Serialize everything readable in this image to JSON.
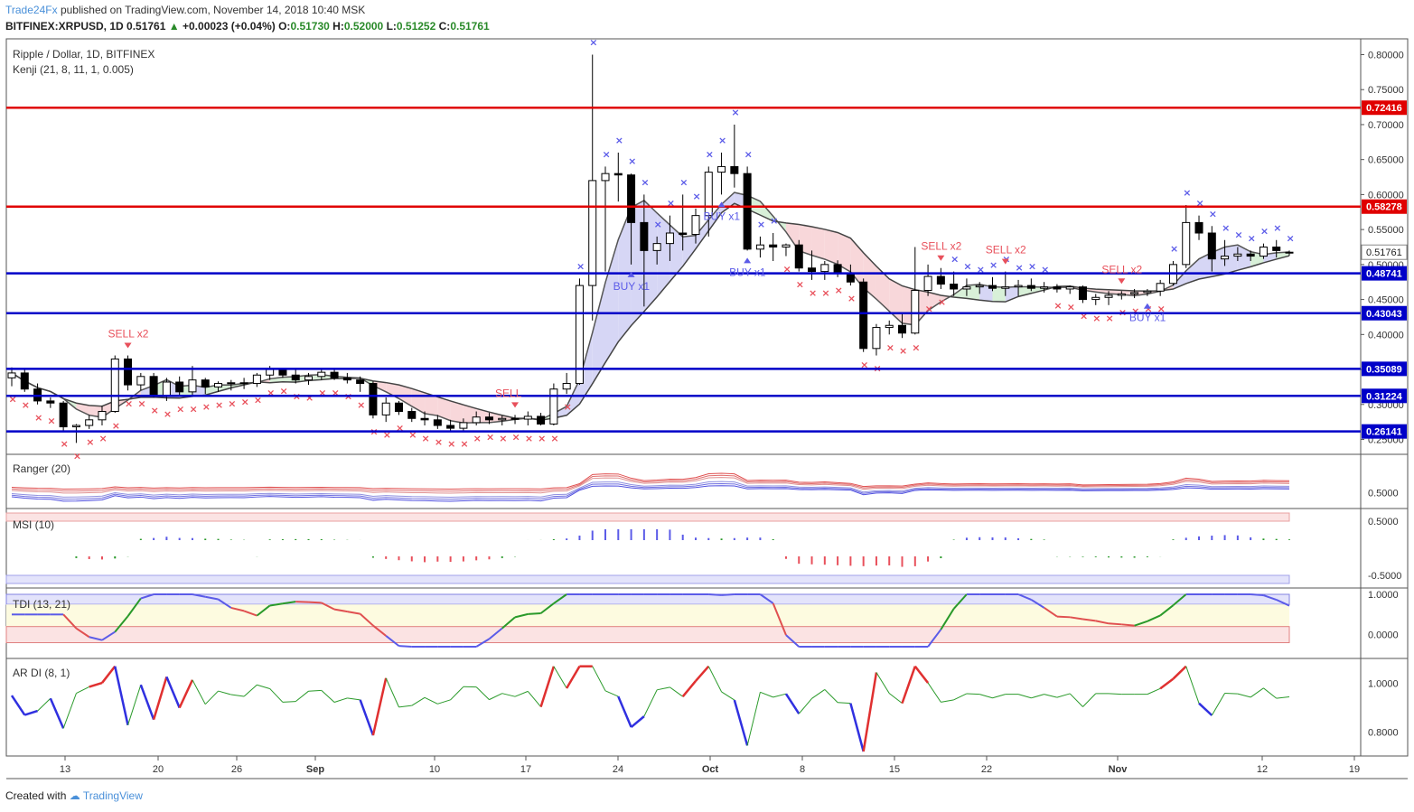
{
  "header": {
    "brand": "Trade24Fx",
    "published": "published on TradingView.com, November 14, 2018 10:40 MSK",
    "symbol": "BITFINEX:XRPUSD, 1D",
    "last": "0.51761",
    "change": "+0.00023 (+0.04%)",
    "o_label": "O:",
    "o": "0.51730",
    "h_label": "H:",
    "h": "0.52000",
    "l_label": "L:",
    "l": "0.51252",
    "c_label": "C:",
    "c": "0.51761"
  },
  "footer": {
    "created": "Created with",
    "tv": "TradingView"
  },
  "colors": {
    "bull": "#ffffff",
    "bear": "#000000",
    "red_line": "#e00000",
    "blue_line": "#0000c8",
    "sell": "#e8505b",
    "buy": "#5b5be8",
    "cloud_pink": "#f8d7da",
    "cloud_blue": "#d6d6f5",
    "cloud_green": "#d8f0d8"
  },
  "chart_data": [
    {
      "type": "candlestick",
      "title": "Ripple / Dollar, 1D, BITFINEX",
      "subtitle": "Kenji (21, 8, 11, 1, 0.005)",
      "ylim": [
        0.23,
        0.82
      ],
      "y_ticks": [
        0.8,
        0.75,
        0.7,
        0.65,
        0.6,
        0.55,
        0.5,
        0.45,
        0.4,
        0.35,
        0.3,
        0.25
      ],
      "y_tick_labels": [
        "0.80000",
        "0.75000",
        "0.70000",
        "0.65000",
        "0.60000",
        "0.55000",
        "0.50000",
        "0.45000",
        "0.40000",
        "0.35000",
        "0.30000",
        "0.25000"
      ],
      "last_price_label": "0.51761",
      "x_tick_labels": [
        "13",
        "20",
        "26",
        "Sep",
        "10",
        "17",
        "24",
        "Oct",
        "8",
        "15",
        "22",
        "Nov",
        "12",
        "19"
      ],
      "levels": [
        {
          "value": 0.72416,
          "label": "0.72416",
          "color": "red"
        },
        {
          "value": 0.58278,
          "label": "0.58278",
          "color": "red"
        },
        {
          "value": 0.48741,
          "label": "0.48741",
          "color": "blue"
        },
        {
          "value": 0.43043,
          "label": "0.43043",
          "color": "blue"
        },
        {
          "value": 0.35089,
          "label": "0.35089",
          "color": "blue"
        },
        {
          "value": 0.31224,
          "label": "0.31224",
          "color": "blue"
        },
        {
          "value": 0.26141,
          "label": "0.26141",
          "color": "blue"
        }
      ],
      "candles": [
        [
          0.338,
          0.353,
          0.326,
          0.345
        ],
        [
          0.345,
          0.35,
          0.318,
          0.322
        ],
        [
          0.322,
          0.33,
          0.3,
          0.305
        ],
        [
          0.305,
          0.31,
          0.295,
          0.302
        ],
        [
          0.302,
          0.305,
          0.262,
          0.268
        ],
        [
          0.268,
          0.272,
          0.245,
          0.27
        ],
        [
          0.27,
          0.285,
          0.265,
          0.278
        ],
        [
          0.278,
          0.298,
          0.27,
          0.29
        ],
        [
          0.29,
          0.37,
          0.288,
          0.365
        ],
        [
          0.365,
          0.37,
          0.32,
          0.328
        ],
        [
          0.328,
          0.345,
          0.32,
          0.34
        ],
        [
          0.34,
          0.345,
          0.31,
          0.312
        ],
        [
          0.312,
          0.338,
          0.305,
          0.332
        ],
        [
          0.332,
          0.34,
          0.312,
          0.318
        ],
        [
          0.318,
          0.355,
          0.312,
          0.335
        ],
        [
          0.335,
          0.338,
          0.315,
          0.325
        ],
        [
          0.325,
          0.333,
          0.318,
          0.33
        ],
        [
          0.33,
          0.335,
          0.32,
          0.331
        ],
        [
          0.331,
          0.338,
          0.322,
          0.33
        ],
        [
          0.33,
          0.345,
          0.325,
          0.342
        ],
        [
          0.342,
          0.355,
          0.335,
          0.35
        ],
        [
          0.35,
          0.352,
          0.338,
          0.342
        ],
        [
          0.342,
          0.35,
          0.33,
          0.335
        ],
        [
          0.335,
          0.345,
          0.328,
          0.34
        ],
        [
          0.34,
          0.35,
          0.335,
          0.346
        ],
        [
          0.346,
          0.35,
          0.335,
          0.338
        ],
        [
          0.338,
          0.345,
          0.33,
          0.335
        ],
        [
          0.335,
          0.34,
          0.318,
          0.33
        ],
        [
          0.33,
          0.333,
          0.28,
          0.285
        ],
        [
          0.285,
          0.31,
          0.275,
          0.302
        ],
        [
          0.302,
          0.305,
          0.285,
          0.29
        ],
        [
          0.29,
          0.295,
          0.275,
          0.28
        ],
        [
          0.28,
          0.29,
          0.27,
          0.278
        ],
        [
          0.278,
          0.285,
          0.265,
          0.27
        ],
        [
          0.27,
          0.278,
          0.262,
          0.266
        ],
        [
          0.266,
          0.28,
          0.262,
          0.274
        ],
        [
          0.274,
          0.29,
          0.27,
          0.282
        ],
        [
          0.282,
          0.288,
          0.272,
          0.278
        ],
        [
          0.278,
          0.284,
          0.27,
          0.28
        ],
        [
          0.28,
          0.285,
          0.272,
          0.279
        ],
        [
          0.279,
          0.29,
          0.27,
          0.283
        ],
        [
          0.283,
          0.288,
          0.27,
          0.272
        ],
        [
          0.272,
          0.33,
          0.27,
          0.322
        ],
        [
          0.322,
          0.345,
          0.315,
          0.33
        ],
        [
          0.33,
          0.48,
          0.328,
          0.47
        ],
        [
          0.47,
          0.8,
          0.42,
          0.62
        ],
        [
          0.62,
          0.64,
          0.49,
          0.63
        ],
        [
          0.63,
          0.66,
          0.59,
          0.628
        ],
        [
          0.628,
          0.63,
          0.5,
          0.56
        ],
        [
          0.56,
          0.6,
          0.44,
          0.52
        ],
        [
          0.52,
          0.54,
          0.5,
          0.53
        ],
        [
          0.53,
          0.57,
          0.505,
          0.545
        ],
        [
          0.545,
          0.6,
          0.52,
          0.543
        ],
        [
          0.543,
          0.58,
          0.53,
          0.57
        ],
        [
          0.57,
          0.64,
          0.54,
          0.632
        ],
        [
          0.632,
          0.66,
          0.6,
          0.64
        ],
        [
          0.64,
          0.7,
          0.61,
          0.63
        ],
        [
          0.63,
          0.64,
          0.52,
          0.522
        ],
        [
          0.522,
          0.54,
          0.51,
          0.528
        ],
        [
          0.528,
          0.545,
          0.505,
          0.525
        ],
        [
          0.525,
          0.53,
          0.512,
          0.528
        ],
        [
          0.528,
          0.535,
          0.49,
          0.495
        ],
        [
          0.495,
          0.52,
          0.478,
          0.49
        ],
        [
          0.49,
          0.505,
          0.478,
          0.5
        ],
        [
          0.5,
          0.506,
          0.482,
          0.488
        ],
        [
          0.488,
          0.5,
          0.47,
          0.475
        ],
        [
          0.475,
          0.48,
          0.375,
          0.38
        ],
        [
          0.38,
          0.415,
          0.37,
          0.41
        ],
        [
          0.41,
          0.42,
          0.4,
          0.413
        ],
        [
          0.413,
          0.43,
          0.395,
          0.402
        ],
        [
          0.402,
          0.525,
          0.4,
          0.463
        ],
        [
          0.463,
          0.5,
          0.455,
          0.483
        ],
        [
          0.483,
          0.495,
          0.465,
          0.472
        ],
        [
          0.472,
          0.49,
          0.455,
          0.465
        ],
        [
          0.465,
          0.48,
          0.455,
          0.468
        ],
        [
          0.468,
          0.475,
          0.458,
          0.47
        ],
        [
          0.47,
          0.482,
          0.462,
          0.466
        ],
        [
          0.466,
          0.49,
          0.455,
          0.468
        ],
        [
          0.468,
          0.478,
          0.455,
          0.47
        ],
        [
          0.47,
          0.48,
          0.462,
          0.466
        ],
        [
          0.466,
          0.475,
          0.46,
          0.468
        ],
        [
          0.468,
          0.472,
          0.46,
          0.465
        ],
        [
          0.465,
          0.47,
          0.458,
          0.468
        ],
        [
          0.468,
          0.47,
          0.445,
          0.45
        ],
        [
          0.45,
          0.458,
          0.442,
          0.453
        ],
        [
          0.453,
          0.462,
          0.442,
          0.456
        ],
        [
          0.456,
          0.462,
          0.45,
          0.458
        ],
        [
          0.458,
          0.465,
          0.452,
          0.46
        ],
        [
          0.46,
          0.465,
          0.455,
          0.462
        ],
        [
          0.462,
          0.478,
          0.455,
          0.473
        ],
        [
          0.473,
          0.505,
          0.47,
          0.5
        ],
        [
          0.5,
          0.585,
          0.495,
          0.56
        ],
        [
          0.56,
          0.57,
          0.535,
          0.545
        ],
        [
          0.545,
          0.555,
          0.49,
          0.508
        ],
        [
          0.508,
          0.535,
          0.498,
          0.512
        ],
        [
          0.512,
          0.525,
          0.505,
          0.515
        ],
        [
          0.515,
          0.52,
          0.505,
          0.512
        ],
        [
          0.512,
          0.53,
          0.508,
          0.525
        ],
        [
          0.525,
          0.535,
          0.51,
          0.52
        ],
        [
          0.5173,
          0.52,
          0.51252,
          0.51761
        ]
      ],
      "signals": [
        {
          "text": "SELL x2",
          "type": "sell",
          "i": 9
        },
        {
          "text": "SELL",
          "type": "sell",
          "i": 39
        },
        {
          "text": "BUY x1",
          "type": "buy",
          "i": 48
        },
        {
          "text": "BUY x1",
          "type": "buy",
          "i": 55
        },
        {
          "text": "BUY x1",
          "type": "buy",
          "i": 57
        },
        {
          "text": "SELL x2",
          "type": "sell",
          "i": 72
        },
        {
          "text": "SELL x2",
          "type": "sell",
          "i": 77
        },
        {
          "text": "SELL x2",
          "type": "sell",
          "i": 86
        },
        {
          "text": "BUY x1",
          "type": "buy",
          "i": 88
        }
      ]
    },
    {
      "type": "line",
      "title": "Ranger (20)",
      "y_ticks": [
        0.5
      ],
      "y_tick_labels": [
        "0.5000"
      ]
    },
    {
      "type": "bar",
      "title": "MSI (10)",
      "y_ticks": [
        0.5,
        -0.5
      ],
      "y_tick_labels": [
        "0.5000",
        "-0.5000"
      ]
    },
    {
      "type": "line",
      "title": "TDI (13, 21)",
      "y_ticks": [
        1.0,
        0.0
      ],
      "y_tick_labels": [
        "1.0000",
        "0.0000"
      ]
    },
    {
      "type": "line",
      "title": "AR DI (8, 1)",
      "y_ticks": [
        1.0,
        0.8
      ],
      "y_tick_labels": [
        "1.0000",
        "0.8000"
      ]
    }
  ]
}
